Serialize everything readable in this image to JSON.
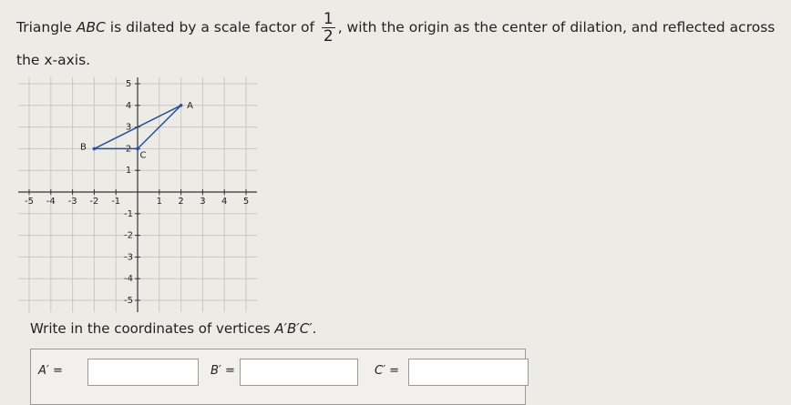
{
  "question": {
    "parts": [
      "Triangle ",
      "ABC",
      " is dilated by a scale factor of "
    ],
    "fraction": {
      "numerator": "1",
      "denominator": "2"
    },
    "rest": ", with the origin as the center of dilation, and reflected across the x-axis."
  },
  "graph": {
    "xlim": [
      -5,
      5
    ],
    "ylim": [
      -5,
      5
    ],
    "xticks": [
      -5,
      -4,
      -3,
      -2,
      -1,
      1,
      2,
      3,
      4,
      5
    ],
    "yticks": [
      5,
      4,
      3,
      2,
      1,
      -1,
      -2,
      -3,
      -4,
      -5
    ],
    "vertices": [
      {
        "label": "A",
        "x": 2,
        "y": 4
      },
      {
        "label": "B",
        "x": -2,
        "y": 2
      },
      {
        "label": "C",
        "x": 0,
        "y": 2
      }
    ]
  },
  "prompt": {
    "text": "Write in the coordinates of vertices ",
    "vertices": "A′B′C′",
    "end": "."
  },
  "answers": [
    {
      "label": "A′ ="
    },
    {
      "label": "B′ ="
    },
    {
      "label": "C′ ="
    }
  ]
}
